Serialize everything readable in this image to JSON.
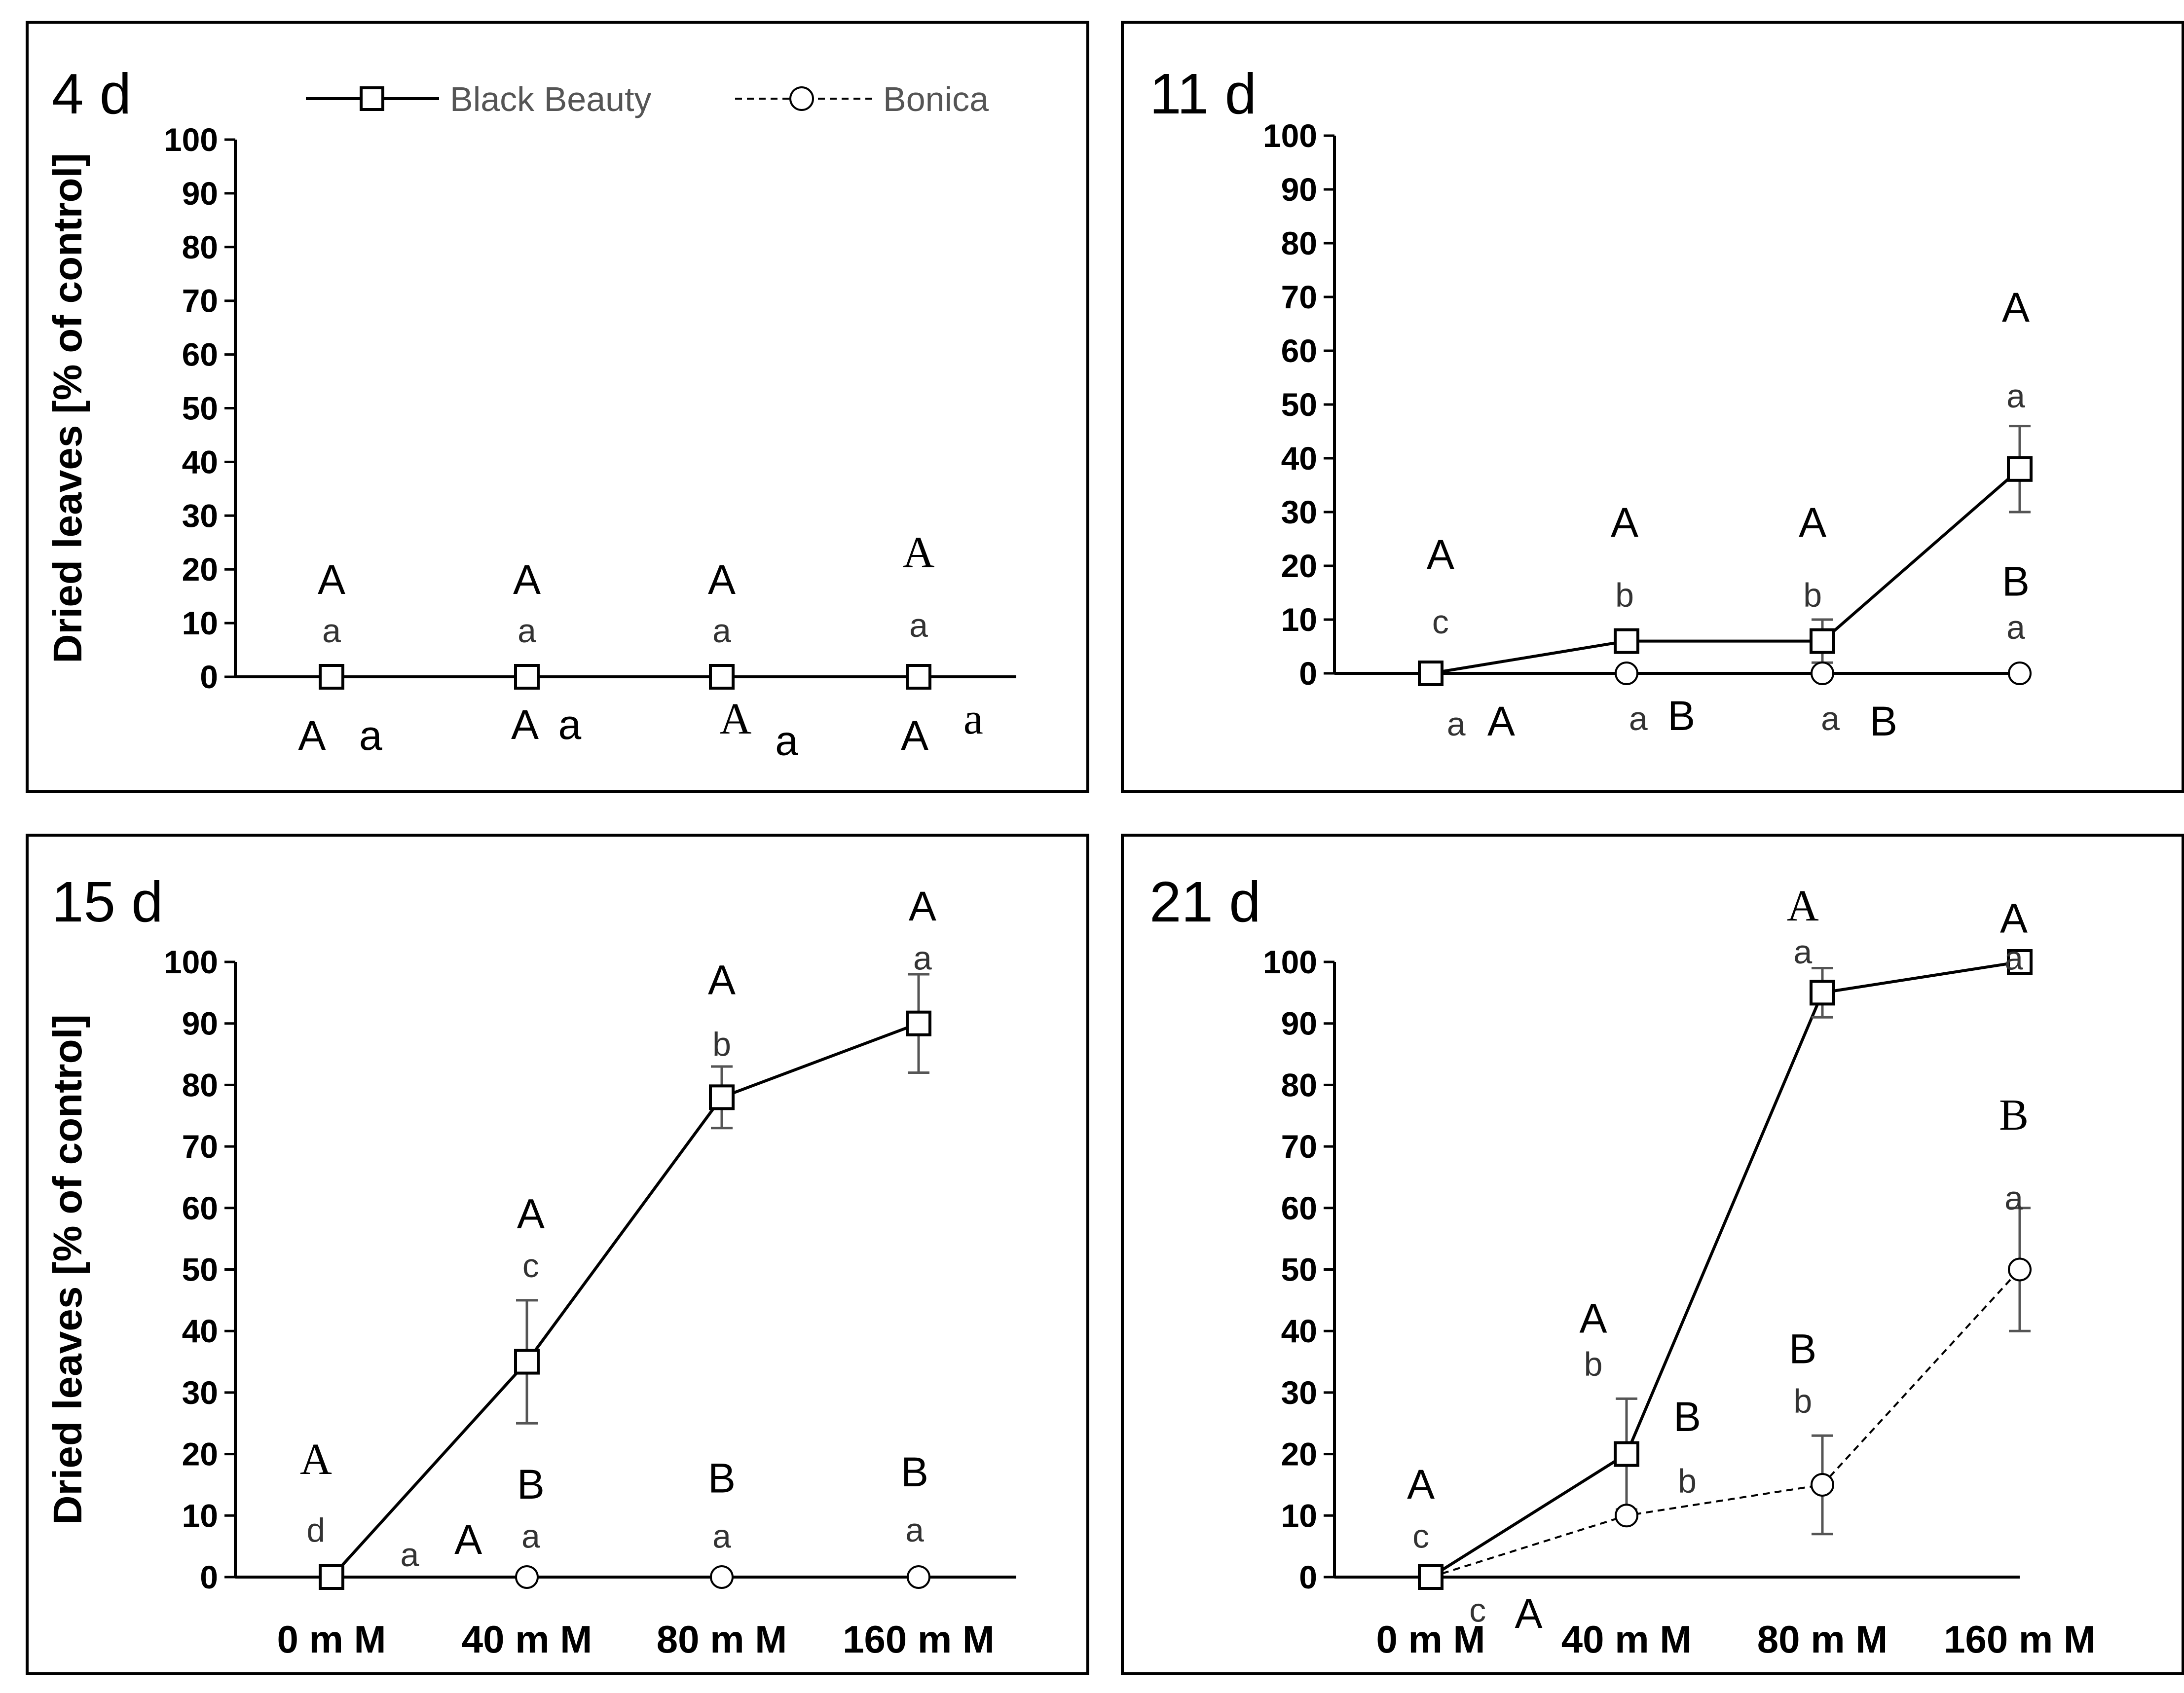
{
  "chart_data": [
    {
      "type": "line",
      "title": "4 d",
      "ylabel": "Dried leaves [% of control]",
      "xlabel": "",
      "ylim": [
        0,
        100
      ],
      "yticks": [
        "0",
        "10",
        "20",
        "30",
        "40",
        "50",
        "60",
        "70",
        "80",
        "90",
        "100"
      ],
      "categories": [
        "0 m M",
        "40 m M",
        "80 m M",
        "160 m M"
      ],
      "show_x_tick_labels": false,
      "legend": {
        "placement": "top",
        "entries": [
          {
            "name": "Black Beauty",
            "marker": "square",
            "line": "solid"
          },
          {
            "name": "Bonica",
            "marker": "circle",
            "line": "dashed"
          }
        ]
      },
      "series": [
        {
          "name": "Black Beauty",
          "values": [
            0,
            0,
            0,
            0
          ],
          "error": [
            0,
            0,
            0,
            0
          ]
        },
        {
          "name": "Bonica",
          "values": [
            0,
            0,
            0,
            0
          ],
          "error": [
            0,
            0,
            0,
            0
          ]
        }
      ],
      "annotations": [
        {
          "text": "A",
          "x": 0,
          "y": 18,
          "kind": "upper"
        },
        {
          "text": "a",
          "x": 0,
          "y": 9,
          "kind": "lower"
        },
        {
          "text": "A",
          "x": 1,
          "y": 18,
          "kind": "upper"
        },
        {
          "text": "a",
          "x": 1,
          "y": 9,
          "kind": "lower"
        },
        {
          "text": "A",
          "x": 2,
          "y": 18,
          "kind": "upper"
        },
        {
          "text": "a",
          "x": 2,
          "y": 9,
          "kind": "lower"
        },
        {
          "text": "A",
          "x": 3,
          "y": 23,
          "kind": "upper-serif"
        },
        {
          "text": "a",
          "x": 3,
          "y": 10,
          "kind": "lower"
        },
        {
          "text": "A",
          "x": -0.1,
          "y": -11,
          "kind": "upper"
        },
        {
          "text": "a",
          "x": 0.2,
          "y": -11,
          "kind": "upper"
        },
        {
          "text": "A",
          "x": 0.99,
          "y": -9,
          "kind": "upper"
        },
        {
          "text": "a",
          "x": 1.22,
          "y": -9,
          "kind": "upper"
        },
        {
          "text": "A",
          "x": 2.07,
          "y": -8,
          "kind": "upper-serif"
        },
        {
          "text": "a",
          "x": 2.33,
          "y": -12,
          "kind": "upper"
        },
        {
          "text": "A",
          "x": 2.98,
          "y": -11,
          "kind": "upper"
        },
        {
          "text": "a",
          "x": 3.28,
          "y": -8,
          "kind": "lower-serif"
        }
      ]
    },
    {
      "type": "line",
      "title": "11 d",
      "ylabel": "",
      "xlabel": "",
      "ylim": [
        0,
        100
      ],
      "yticks": [
        "0",
        "10",
        "20",
        "30",
        "40",
        "50",
        "60",
        "70",
        "80",
        "90",
        "100"
      ],
      "categories": [
        "0 m M",
        "40 m M",
        "80 m M",
        "160 m M"
      ],
      "show_x_tick_labels": false,
      "series": [
        {
          "name": "Black Beauty",
          "values": [
            0,
            6,
            6,
            38
          ],
          "error": [
            0,
            0,
            4,
            8
          ]
        },
        {
          "name": "Bonica",
          "values": [
            0,
            0,
            0,
            0
          ],
          "error": [
            0,
            0,
            0,
            0
          ]
        }
      ],
      "annotations": [
        {
          "text": "A",
          "x": 0.05,
          "y": 22,
          "kind": "upper"
        },
        {
          "text": "c",
          "x": 0.05,
          "y": 10,
          "kind": "lower"
        },
        {
          "text": "A",
          "x": 0.99,
          "y": 28,
          "kind": "upper"
        },
        {
          "text": "b",
          "x": 0.99,
          "y": 15,
          "kind": "lower"
        },
        {
          "text": "A",
          "x": 1.95,
          "y": 28,
          "kind": "upper"
        },
        {
          "text": "b",
          "x": 1.95,
          "y": 15,
          "kind": "lower"
        },
        {
          "text": "A",
          "x": 2.98,
          "y": 68,
          "kind": "upper"
        },
        {
          "text": "a",
          "x": 2.98,
          "y": 52,
          "kind": "lower"
        },
        {
          "text": "B",
          "x": 2.98,
          "y": 17,
          "kind": "upper"
        },
        {
          "text": "a",
          "x": 2.98,
          "y": 9,
          "kind": "lower"
        },
        {
          "text": "a",
          "x": 0.13,
          "y": -9,
          "kind": "lower"
        },
        {
          "text": "A",
          "x": 0.36,
          "y": -9,
          "kind": "upper"
        },
        {
          "text": "a",
          "x": 1.06,
          "y": -8,
          "kind": "lower"
        },
        {
          "text": "B",
          "x": 1.28,
          "y": -8,
          "kind": "upper"
        },
        {
          "text": "a",
          "x": 2.04,
          "y": -8,
          "kind": "lower"
        },
        {
          "text": "B",
          "x": 2.31,
          "y": -9,
          "kind": "upper"
        }
      ]
    },
    {
      "type": "line",
      "title": "15 d",
      "ylabel": "Dried leaves [% of control]",
      "xlabel": "",
      "ylim": [
        0,
        100
      ],
      "yticks": [
        "0",
        "10",
        "20",
        "30",
        "40",
        "50",
        "60",
        "70",
        "80",
        "90",
        "100"
      ],
      "categories": [
        "0 m M",
        "40 m M",
        "80 m M",
        "160 m M"
      ],
      "show_x_tick_labels": true,
      "series": [
        {
          "name": "Black Beauty",
          "values": [
            0,
            35,
            78,
            90
          ],
          "error": [
            0,
            10,
            5,
            8
          ]
        },
        {
          "name": "Bonica",
          "values": [
            0,
            0,
            0,
            0
          ],
          "error": [
            0,
            0,
            0,
            0
          ]
        }
      ],
      "annotations": [
        {
          "text": "A",
          "x": -0.08,
          "y": 19,
          "kind": "upper-serif"
        },
        {
          "text": "d",
          "x": -0.08,
          "y": 8,
          "kind": "lower"
        },
        {
          "text": "a",
          "x": 0.4,
          "y": 4,
          "kind": "lower"
        },
        {
          "text": "A",
          "x": 0.7,
          "y": 6,
          "kind": "upper"
        },
        {
          "text": "A",
          "x": 1.02,
          "y": 59,
          "kind": "upper"
        },
        {
          "text": "c",
          "x": 1.02,
          "y": 51,
          "kind": "lower"
        },
        {
          "text": "B",
          "x": 1.02,
          "y": 15,
          "kind": "upper"
        },
        {
          "text": "a",
          "x": 1.02,
          "y": 7,
          "kind": "lower"
        },
        {
          "text": "A",
          "x": 2.0,
          "y": 97,
          "kind": "upper"
        },
        {
          "text": "b",
          "x": 2.0,
          "y": 87,
          "kind": "lower"
        },
        {
          "text": "B",
          "x": 2.0,
          "y": 16,
          "kind": "upper"
        },
        {
          "text": "a",
          "x": 2.0,
          "y": 7,
          "kind": "lower"
        },
        {
          "text": "A",
          "x": 3.02,
          "y": 109,
          "kind": "upper"
        },
        {
          "text": "a",
          "x": 3.02,
          "y": 101,
          "kind": "lower"
        },
        {
          "text": "B",
          "x": 2.98,
          "y": 17,
          "kind": "upper"
        },
        {
          "text": "a",
          "x": 2.98,
          "y": 8,
          "kind": "lower"
        }
      ]
    },
    {
      "type": "line",
      "title": "21 d",
      "ylabel": "",
      "xlabel": "",
      "ylim": [
        0,
        100
      ],
      "yticks": [
        "0",
        "10",
        "20",
        "30",
        "40",
        "50",
        "60",
        "70",
        "80",
        "90",
        "100"
      ],
      "categories": [
        "0 m M",
        "40 m M",
        "80 m M",
        "160 m M"
      ],
      "show_x_tick_labels": true,
      "series": [
        {
          "name": "Black Beauty",
          "values": [
            0,
            20,
            95,
            100
          ],
          "error": [
            0,
            9,
            4,
            0
          ]
        },
        {
          "name": "Bonica",
          "values": [
            0,
            10,
            15,
            50
          ],
          "error": [
            0,
            0,
            8,
            10
          ]
        }
      ],
      "annotations": [
        {
          "text": "A",
          "x": -0.05,
          "y": 15,
          "kind": "upper"
        },
        {
          "text": "c",
          "x": -0.05,
          "y": 7,
          "kind": "lower"
        },
        {
          "text": "c",
          "x": 0.24,
          "y": -5,
          "kind": "lower"
        },
        {
          "text": "A",
          "x": 0.5,
          "y": -6,
          "kind": "upper"
        },
        {
          "text": "A",
          "x": 0.83,
          "y": 42,
          "kind": "upper"
        },
        {
          "text": "b",
          "x": 0.83,
          "y": 35,
          "kind": "lower"
        },
        {
          "text": "B",
          "x": 1.31,
          "y": 26,
          "kind": "upper"
        },
        {
          "text": "b",
          "x": 1.31,
          "y": 16,
          "kind": "lower"
        },
        {
          "text": "A",
          "x": 1.9,
          "y": 109,
          "kind": "upper-serif"
        },
        {
          "text": "a",
          "x": 1.9,
          "y": 102,
          "kind": "lower"
        },
        {
          "text": "B",
          "x": 1.9,
          "y": 37,
          "kind": "upper"
        },
        {
          "text": "b",
          "x": 1.9,
          "y": 29,
          "kind": "lower"
        },
        {
          "text": "A",
          "x": 2.97,
          "y": 107,
          "kind": "upper"
        },
        {
          "text": "a",
          "x": 2.97,
          "y": 101,
          "kind": "lower"
        },
        {
          "text": "B",
          "x": 2.97,
          "y": 75,
          "kind": "upper-serif"
        },
        {
          "text": "a",
          "x": 2.97,
          "y": 62,
          "kind": "lower"
        }
      ]
    }
  ]
}
